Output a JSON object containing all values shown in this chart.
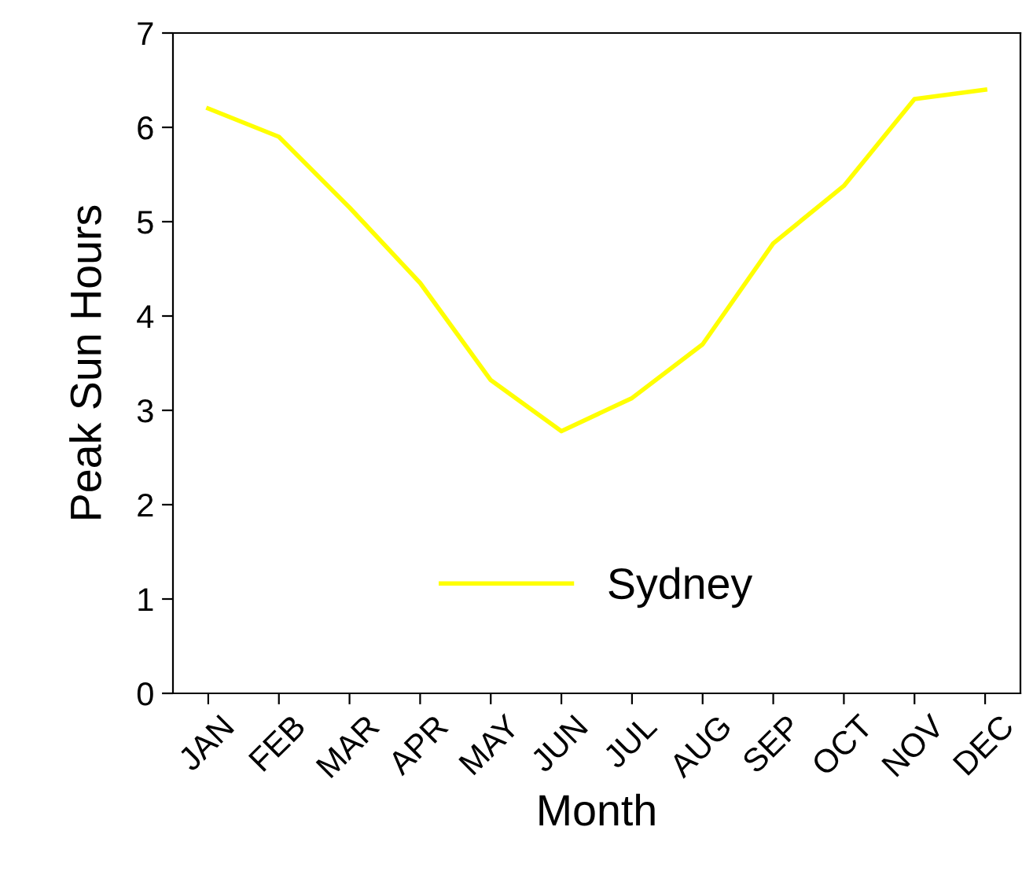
{
  "chart_data": {
    "type": "line",
    "xlabel": "Month",
    "ylabel": "Peak Sun Hours",
    "categories": [
      "JAN",
      "FEB",
      "MAR",
      "APR",
      "MAY",
      "JUN",
      "JUL",
      "AUG",
      "SEP",
      "OCT",
      "NOV",
      "DEC"
    ],
    "series": [
      {
        "name": "Sydney",
        "color": "#ffff00",
        "values": [
          6.2,
          5.9,
          5.15,
          4.35,
          3.32,
          2.78,
          3.13,
          3.7,
          4.77,
          5.38,
          6.3,
          6.4
        ]
      }
    ],
    "ylim": [
      0,
      7
    ],
    "yticks": [
      0,
      1,
      2,
      3,
      4,
      5,
      6,
      7
    ],
    "grid": false,
    "legend": "bottom",
    "marker": "none",
    "line_style": "solid"
  }
}
